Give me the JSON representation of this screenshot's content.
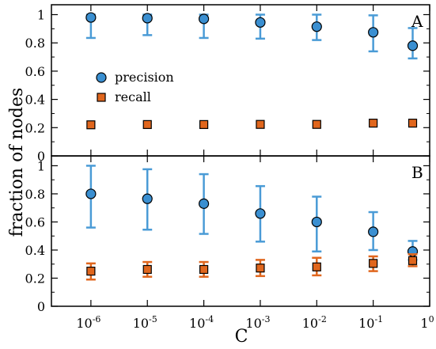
{
  "chart_data": {
    "type": "scatter",
    "xlabel": "C",
    "ylabel": "fraction of nodes",
    "x_scale": "log",
    "xlim": [
      2e-07,
      1
    ],
    "x_ticks": [
      {
        "value": 1e-06,
        "base": "10",
        "exp": "-6"
      },
      {
        "value": 1e-05,
        "base": "10",
        "exp": "-5"
      },
      {
        "value": 0.0001,
        "base": "10",
        "exp": "-4"
      },
      {
        "value": 0.001,
        "base": "10",
        "exp": "-3"
      },
      {
        "value": 0.01,
        "base": "10",
        "exp": "-2"
      },
      {
        "value": 0.1,
        "base": "10",
        "exp": "-1"
      },
      {
        "value": 1,
        "base": "1",
        "exp": "0"
      }
    ],
    "y_ticks": [
      "0",
      "0.2",
      "0.4",
      "0.6",
      "0.8",
      "1"
    ],
    "legend": {
      "position": "upper-left of panel A",
      "entries": [
        {
          "label": "precision",
          "marker": "circle",
          "color": "#3a8fd1"
        },
        {
          "label": "recall",
          "marker": "square",
          "color": "#e0661d"
        }
      ]
    },
    "panels": [
      {
        "label": "A",
        "ylim": [
          0,
          1.07
        ],
        "series": [
          {
            "name": "precision",
            "marker": "circle",
            "color": "#3a8fd1",
            "error_color": "#4a9bd6",
            "x": [
              1e-06,
              1e-05,
              0.0001,
              0.001,
              0.01,
              0.1,
              0.5
            ],
            "y": [
              0.98,
              0.975,
              0.97,
              0.945,
              0.915,
              0.875,
              0.78
            ],
            "yerr_low": [
              0.835,
              0.855,
              0.835,
              0.83,
              0.82,
              0.74,
              0.69
            ],
            "yerr_high": [
              1.0,
              1.0,
              1.0,
              1.0,
              1.0,
              0.995,
              0.905
            ]
          },
          {
            "name": "recall",
            "marker": "square",
            "color": "#e0661d",
            "error_color": "#e0661d",
            "x": [
              1e-06,
              1e-05,
              0.0001,
              0.001,
              0.01,
              0.1,
              0.5
            ],
            "y": [
              0.22,
              0.222,
              0.222,
              0.223,
              0.223,
              0.232,
              0.232
            ],
            "yerr_low": [
              0.22,
              0.222,
              0.222,
              0.223,
              0.223,
              0.232,
              0.232
            ],
            "yerr_high": [
              0.22,
              0.222,
              0.222,
              0.223,
              0.223,
              0.232,
              0.232
            ]
          }
        ]
      },
      {
        "label": "B",
        "ylim": [
          0,
          1.07
        ],
        "series": [
          {
            "name": "precision",
            "marker": "circle",
            "color": "#3a8fd1",
            "error_color": "#4a9bd6",
            "x": [
              1e-06,
              1e-05,
              0.0001,
              0.001,
              0.01,
              0.1,
              0.5
            ],
            "y": [
              0.8,
              0.765,
              0.73,
              0.66,
              0.6,
              0.53,
              0.39
            ],
            "yerr_low": [
              0.56,
              0.545,
              0.515,
              0.46,
              0.39,
              0.4,
              0.33
            ],
            "yerr_high": [
              1.0,
              0.975,
              0.94,
              0.855,
              0.78,
              0.67,
              0.465
            ]
          },
          {
            "name": "recall",
            "marker": "square",
            "color": "#e0661d",
            "error_color": "#e0661d",
            "x": [
              1e-06,
              1e-05,
              0.0001,
              0.001,
              0.01,
              0.1,
              0.5
            ],
            "y": [
              0.25,
              0.262,
              0.262,
              0.272,
              0.28,
              0.305,
              0.325
            ],
            "yerr_low": [
              0.19,
              0.21,
              0.21,
              0.215,
              0.22,
              0.25,
              0.285
            ],
            "yerr_high": [
              0.305,
              0.315,
              0.315,
              0.33,
              0.345,
              0.355,
              0.37
            ]
          }
        ]
      }
    ]
  }
}
